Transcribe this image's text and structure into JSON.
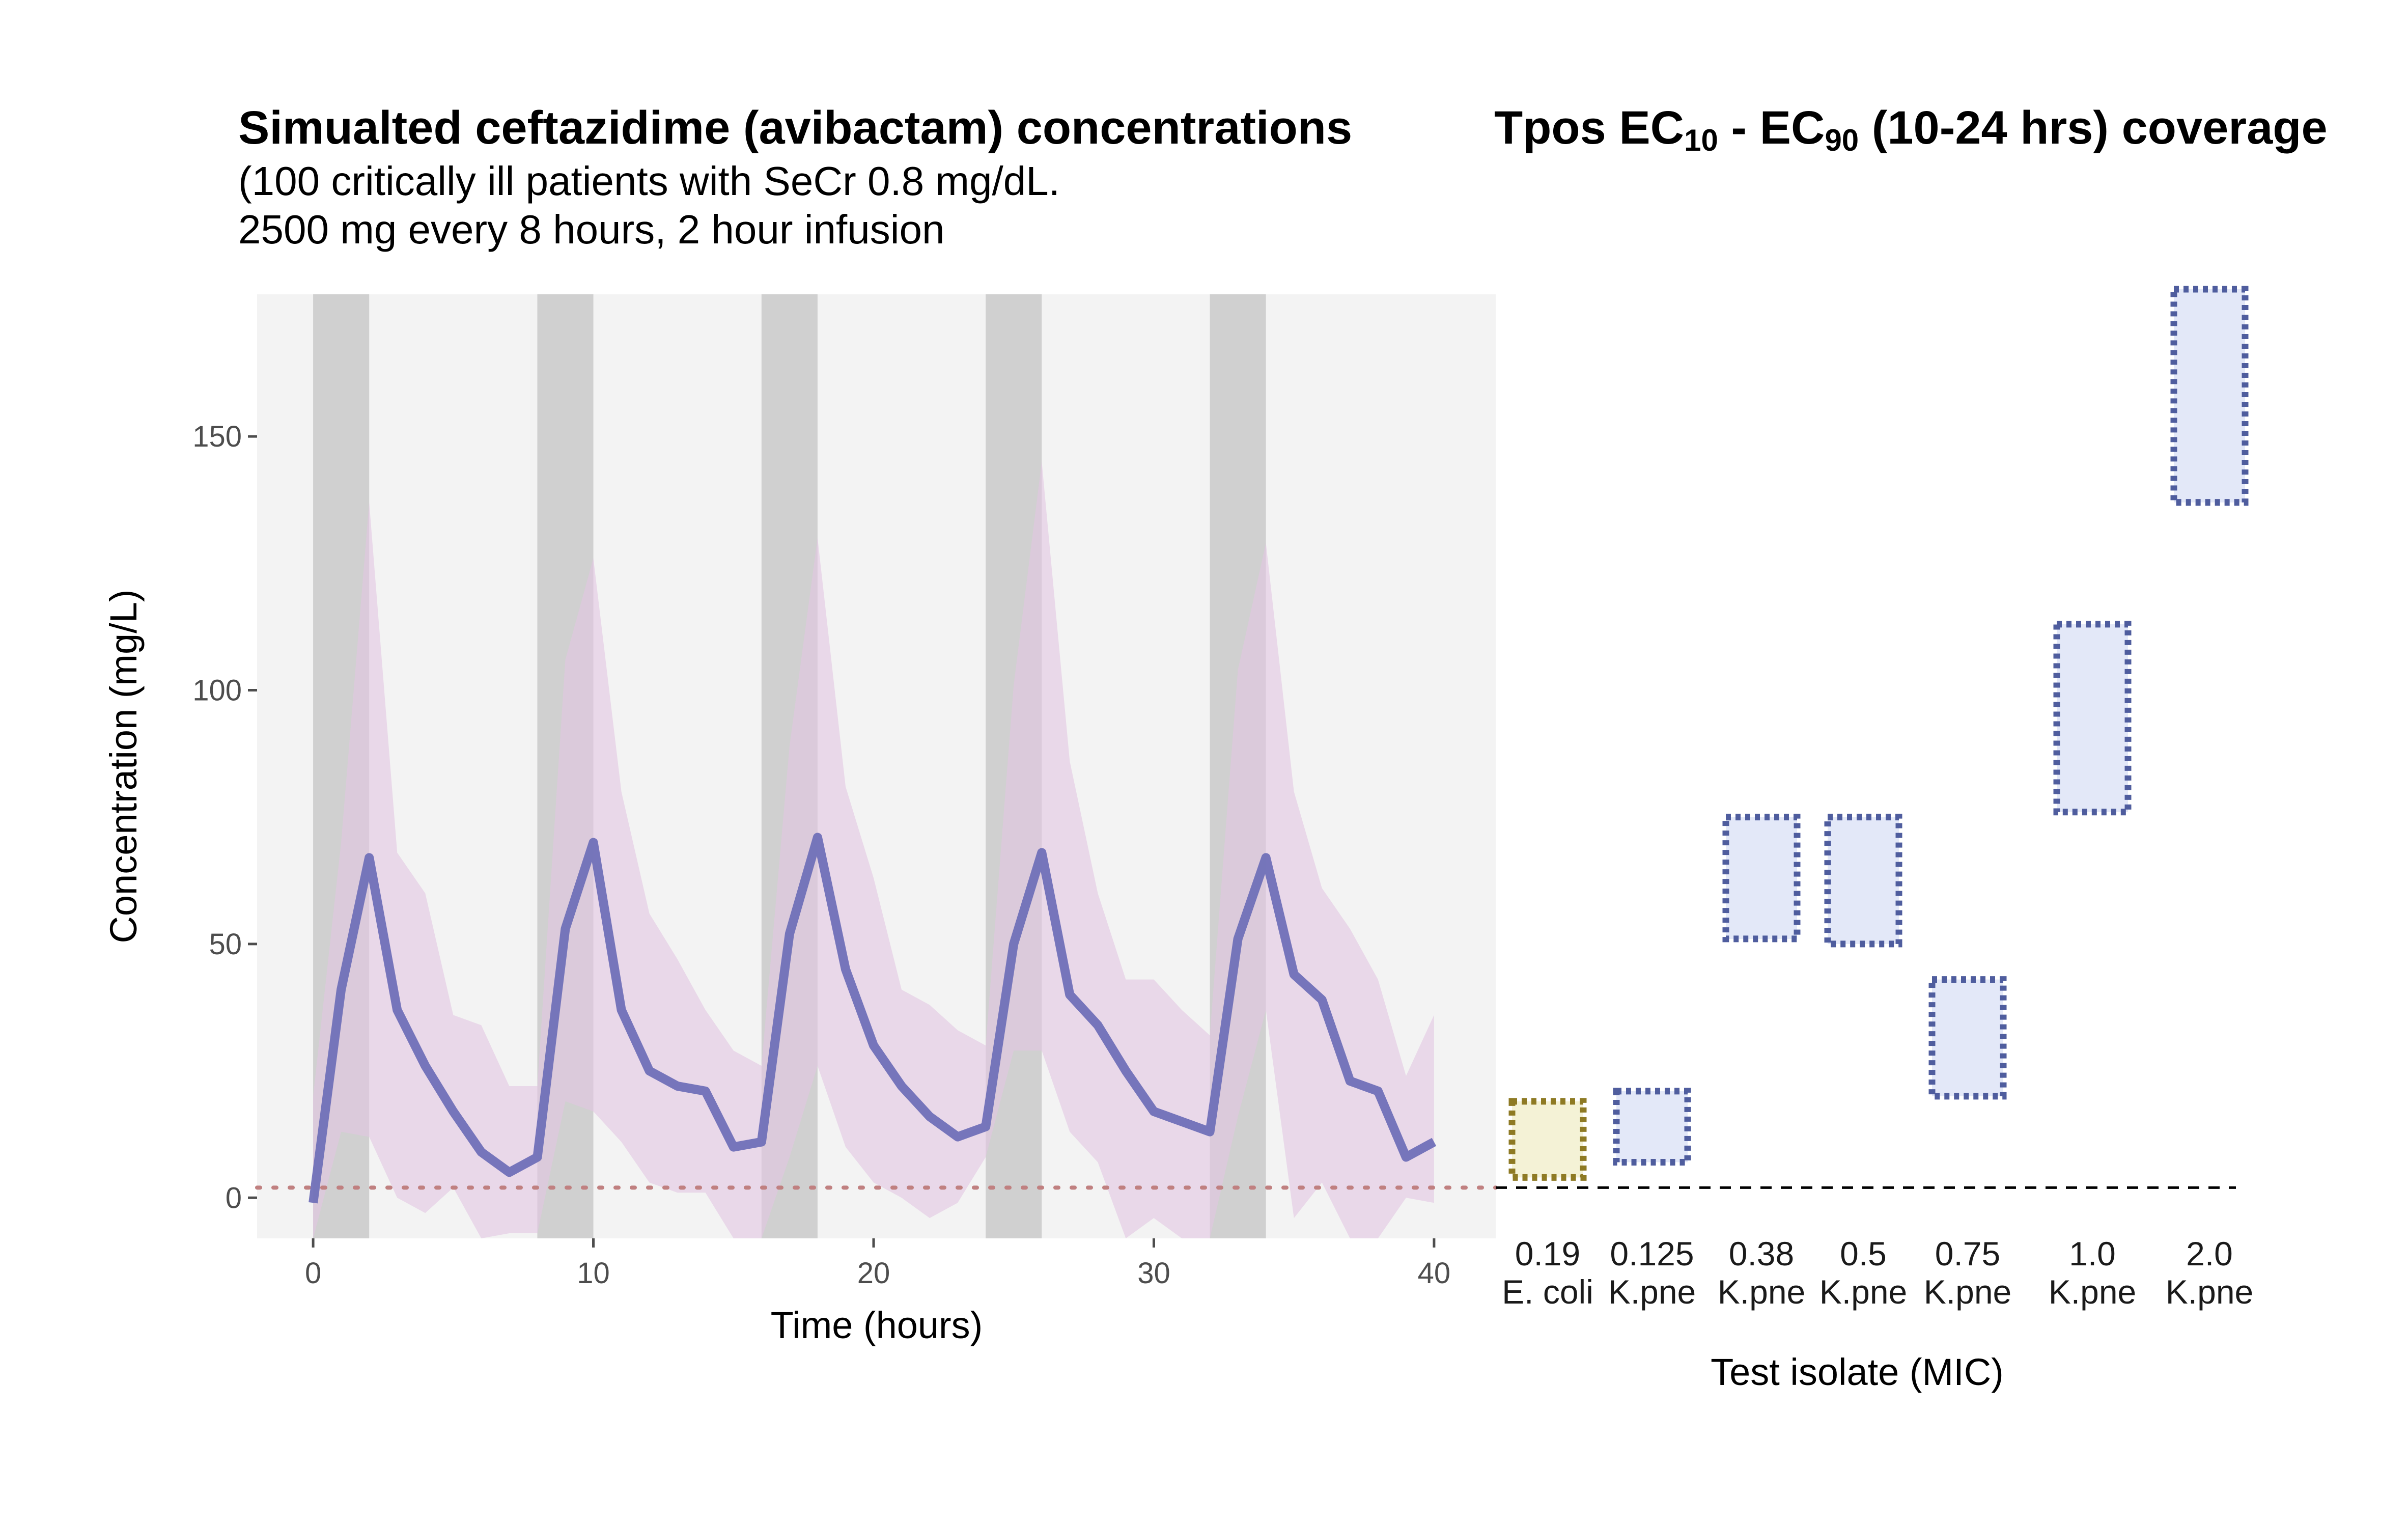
{
  "left_panel": {
    "title": "Simualted ceftazidime (avibactam) concentrations",
    "subtitle_line1": "(100 critically ill patients with SeCr 0.8 mg/dL.",
    "subtitle_line2": "2500 mg every 8 hours, 2 hour infusion"
  },
  "right_panel": {
    "title_pre": "Tpos EC",
    "title_sub1": "10",
    "title_mid": " - EC",
    "title_sub2": "90",
    "title_post": " (10-24 hrs) coverage"
  },
  "colors": {
    "panel_bg": "#f3f3f3",
    "infusion_band": "#d0d0d0",
    "ribbon": "#e3c7e3",
    "median_line": "#7070b8",
    "mic_line": "#c08080",
    "ecoli_fill": "#f4f2d6",
    "ecoli_border": "#8e7a24",
    "kpne_fill": "#e3e8f8",
    "kpne_border": "#4f5d9e",
    "dashed_ref": "#000000"
  },
  "chart_data": [
    {
      "type": "line",
      "title": "Simualted ceftazidime (avibactam) concentrations",
      "xlabel": "Time (hours)",
      "ylabel": "Concentration (mg/L)",
      "xlim": [
        -2,
        42.2
      ],
      "ylim": [
        -8,
        178
      ],
      "x_ticks": [
        0,
        10,
        20,
        30,
        40
      ],
      "y_ticks": [
        0,
        50,
        100,
        150
      ],
      "x_tick_labels": [
        "0",
        "10",
        "20",
        "30",
        "40"
      ],
      "y_tick_labels": [
        "0",
        "50",
        "100",
        "150"
      ],
      "infusion_intervals": [
        [
          0,
          2
        ],
        [
          8,
          10
        ],
        [
          16,
          18
        ],
        [
          24,
          26
        ],
        [
          32,
          34
        ]
      ],
      "mic_reference": 2,
      "x": [
        0,
        1,
        2,
        3,
        4,
        5,
        6,
        7,
        8,
        9,
        10,
        11,
        12,
        13,
        14,
        15,
        16,
        17,
        18,
        19,
        20,
        21,
        22,
        23,
        24,
        25,
        26,
        27,
        28,
        29,
        30,
        31,
        32,
        33,
        34,
        35,
        36,
        37,
        38,
        39,
        40
      ],
      "median": [
        -1,
        41,
        67,
        37,
        26,
        17,
        9,
        5,
        8,
        53,
        70,
        37,
        25,
        22,
        21,
        10,
        11,
        52,
        71,
        45,
        30,
        22,
        16,
        12,
        14,
        50,
        68,
        40,
        34,
        25,
        17,
        15,
        13,
        51,
        67,
        44,
        39,
        23,
        21,
        8,
        11
      ],
      "upper": [
        20,
        70,
        137,
        68,
        60,
        36,
        34,
        22,
        22,
        106,
        126,
        80,
        56,
        47,
        37,
        29,
        26,
        89,
        130,
        81,
        63,
        41,
        38,
        33,
        30,
        101,
        145,
        86,
        60,
        43,
        43,
        37,
        32,
        104,
        129,
        80,
        61,
        53,
        43,
        24,
        36
      ],
      "lower": [
        -9,
        13,
        12,
        0,
        -3,
        2,
        -8,
        -7,
        -7,
        19,
        17,
        11,
        3,
        1,
        1,
        -8,
        -8,
        8,
        26,
        10,
        3,
        0,
        -4,
        -1,
        8,
        29,
        29,
        13,
        7,
        -8,
        -4,
        -8,
        -8,
        16,
        37,
        -4,
        3,
        -8,
        -8,
        0,
        -1
      ]
    },
    {
      "type": "range",
      "title": "Tpos EC10 - EC90 (10-24 hrs) coverage",
      "xlabel": "Test isolate (MIC)",
      "ylim": [
        -8,
        178
      ],
      "reference_line": 2,
      "categories": [
        "0.19 E. coli",
        "0.125 K.pne",
        "0.38 K.pne",
        "0.5 K.pne",
        "0.75 K.pne",
        "1.0 K.pne",
        "2.0 K.pne"
      ],
      "mic_labels": [
        "0.19",
        "0.125",
        "0.38",
        "0.5",
        "0.75",
        "1.0",
        "2.0"
      ],
      "organism_labels": [
        "E. coli",
        "K.pne",
        "K.pne",
        "K.pne",
        "K.pne",
        "K.pne",
        "K.pne"
      ],
      "ec10": [
        4,
        7,
        51,
        50,
        20,
        76,
        137
      ],
      "ec90": [
        19,
        21,
        75,
        75,
        43,
        113,
        179
      ],
      "organism_type": [
        "E. coli",
        "K.pne",
        "K.pne",
        "K.pne",
        "K.pne",
        "K.pne",
        "K.pne"
      ]
    }
  ]
}
